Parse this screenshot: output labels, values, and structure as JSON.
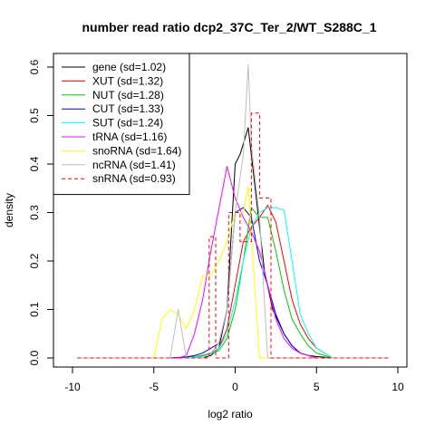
{
  "chart_data": {
    "type": "line",
    "title": "number read ratio dcp2_37C_Ter_2/WT_S288C_1",
    "xlabel": "log2 ratio",
    "ylabel": "density",
    "xlim": [
      -10,
      10
    ],
    "ylim": [
      0,
      0.6
    ],
    "xticks": [
      -10,
      -5,
      0,
      5,
      10
    ],
    "yticks": [
      0.0,
      0.1,
      0.2,
      0.3,
      0.4,
      0.5,
      0.6
    ],
    "legend_position": "top-left",
    "grid": false,
    "series": [
      {
        "name": "gene (sd=1.02)",
        "color": "#000000",
        "dash": false,
        "x": [
          -9.7,
          -4.5,
          -3.5,
          -3.0,
          -2.0,
          -1.5,
          -1.0,
          -0.5,
          0.0,
          0.3,
          0.8,
          1.3,
          1.8,
          2.3,
          3.0,
          3.5,
          4.0,
          4.5,
          5.0,
          6.0,
          9.4
        ],
        "y": [
          0.0,
          0.0,
          0.0,
          0.0,
          0.0,
          0.005,
          0.02,
          0.1,
          0.4,
          0.42,
          0.475,
          0.33,
          0.18,
          0.1,
          0.05,
          0.025,
          0.01,
          0.005,
          0.003,
          0.0,
          0.0
        ]
      },
      {
        "name": "XUT (sd=1.32)",
        "color": "#ff0000",
        "dash": false,
        "x": [
          -9.7,
          -4.0,
          -2.5,
          -2.0,
          -1.5,
          -1.0,
          -0.5,
          0.0,
          0.5,
          1.0,
          1.5,
          2.0,
          2.5,
          3.0,
          3.5,
          4.0,
          4.5,
          5.0,
          6.0,
          9.4
        ],
        "y": [
          0.0,
          0.0,
          0.0,
          0.005,
          0.01,
          0.02,
          0.06,
          0.15,
          0.24,
          0.27,
          0.29,
          0.315,
          0.28,
          0.2,
          0.12,
          0.07,
          0.04,
          0.02,
          0.0,
          0.0
        ]
      },
      {
        "name": "NUT (sd=1.28)",
        "color": "#00cc00",
        "dash": false,
        "x": [
          -9.7,
          -4.0,
          -3.0,
          -2.5,
          -2.0,
          -1.5,
          -1.0,
          -0.5,
          0.0,
          0.5,
          1.0,
          1.5,
          2.0,
          2.5,
          3.0,
          3.5,
          4.0,
          4.5,
          5.0,
          6.0,
          9.4
        ],
        "y": [
          0.0,
          0.0,
          0.002,
          0.003,
          0.005,
          0.01,
          0.015,
          0.04,
          0.1,
          0.2,
          0.31,
          0.29,
          0.29,
          0.22,
          0.14,
          0.08,
          0.05,
          0.025,
          0.01,
          0.0,
          0.0
        ]
      },
      {
        "name": "CUT (sd=1.33)",
        "color": "#0000ff",
        "dash": false,
        "x": [
          -9.7,
          -4.0,
          -3.0,
          -2.5,
          -2.0,
          -1.5,
          -1.0,
          -0.5,
          0.0,
          0.5,
          1.0,
          1.5,
          2.0,
          2.5,
          3.0,
          3.5,
          4.0,
          4.5,
          5.0,
          9.4
        ],
        "y": [
          0.0,
          0.0,
          0.002,
          0.005,
          0.01,
          0.02,
          0.03,
          0.1,
          0.3,
          0.31,
          0.29,
          0.2,
          0.15,
          0.09,
          0.05,
          0.025,
          0.01,
          0.005,
          0.0,
          0.0
        ]
      },
      {
        "name": "SUT (sd=1.24)",
        "color": "#00ffff",
        "dash": false,
        "x": [
          -9.7,
          -3.0,
          -2.0,
          -1.5,
          -1.0,
          -0.5,
          0.0,
          0.5,
          1.0,
          1.5,
          2.0,
          2.5,
          3.0,
          3.5,
          4.0,
          4.5,
          5.0,
          6.0,
          9.4
        ],
        "y": [
          0.0,
          0.0,
          0.003,
          0.008,
          0.02,
          0.05,
          0.12,
          0.2,
          0.27,
          0.3,
          0.31,
          0.31,
          0.305,
          0.2,
          0.09,
          0.05,
          0.02,
          0.0,
          0.0
        ]
      },
      {
        "name": "tRNA (sd=1.16)",
        "color": "#ff00ff",
        "dash": false,
        "x": [
          -9.7,
          -4.5,
          -3.5,
          -3.0,
          -2.5,
          -2.0,
          -1.5,
          -0.5,
          0.0,
          0.5,
          1.0,
          1.5,
          2.0,
          2.5,
          3.0,
          3.5,
          4.0,
          4.5,
          5.0,
          9.4
        ],
        "y": [
          0.0,
          0.0,
          0.0,
          0.005,
          0.05,
          0.12,
          0.22,
          0.395,
          0.33,
          0.29,
          0.26,
          0.22,
          0.15,
          0.08,
          0.04,
          0.02,
          0.01,
          0.005,
          0.0,
          0.0
        ]
      },
      {
        "name": "snoRNA (sd=1.64)",
        "color": "#ffff00",
        "dash": false,
        "x": [
          -9.7,
          -5.0,
          -4.5,
          -4.0,
          -3.5,
          -3.0,
          -2.5,
          -2.0,
          -1.5,
          -1.0,
          -0.5,
          0.0,
          0.5,
          0.8,
          1.0,
          1.3,
          1.5,
          9.4
        ],
        "y": [
          0.0,
          0.0,
          0.08,
          0.1,
          0.09,
          0.06,
          0.1,
          0.17,
          0.17,
          0.2,
          0.24,
          0.3,
          0.3,
          0.355,
          0.25,
          0.1,
          0.0,
          0.0
        ]
      },
      {
        "name": "ncRNA (sd=1.41)",
        "color": "#bebebe",
        "dash": false,
        "x": [
          -9.7,
          -4.5,
          -4.0,
          -3.5,
          -3.0,
          -2.5,
          -2.0,
          -1.5,
          -1.0,
          -0.5,
          0.0,
          0.5,
          0.8,
          1.0,
          1.5,
          2.0,
          2.5,
          9.4
        ],
        "y": [
          0.0,
          0.0,
          0.0,
          0.1,
          0.0,
          0.0,
          0.0,
          0.01,
          0.03,
          0.1,
          0.3,
          0.42,
          0.605,
          0.44,
          0.29,
          0.0,
          0.0,
          0.0
        ]
      },
      {
        "name": "snRNA (sd=0.93)",
        "color": "#ff0000",
        "dash": true,
        "x": [
          -9.7,
          -1.6,
          -1.6,
          -1.2,
          -1.2,
          -0.4,
          -0.4,
          0.3,
          0.3,
          1.0,
          1.0,
          1.5,
          1.5,
          2.2,
          2.2,
          9.4
        ],
        "y": [
          0.0,
          0.0,
          0.25,
          0.25,
          0.0,
          0.0,
          0.3,
          0.3,
          0.24,
          0.24,
          0.505,
          0.505,
          0.33,
          0.33,
          0.0,
          0.0
        ]
      }
    ]
  }
}
